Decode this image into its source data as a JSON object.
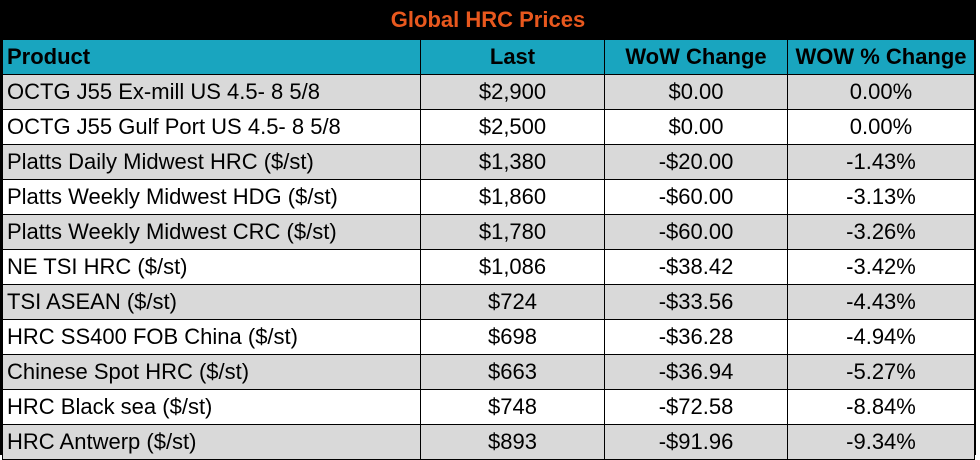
{
  "title": "Global HRC Prices",
  "colors": {
    "title_bg": "#000000",
    "title_text": "#e8581e",
    "header_bg": "#19a5bf",
    "row_shade": "#d9d9d9",
    "row_plain": "#ffffff"
  },
  "columns": [
    "Product",
    "Last",
    "WoW Change",
    "WOW % Change"
  ],
  "rows": [
    {
      "product": "OCTG J55 Ex-mill US 4.5- 8 5/8",
      "last": "$2,900",
      "wow": "$0.00",
      "wow_pct": "0.00%"
    },
    {
      "product": "OCTG J55 Gulf Port US 4.5- 8 5/8",
      "last": "$2,500",
      "wow": "$0.00",
      "wow_pct": "0.00%"
    },
    {
      "product": "Platts Daily Midwest HRC ($/st)",
      "last": "$1,380",
      "wow": "-$20.00",
      "wow_pct": "-1.43%"
    },
    {
      "product": "Platts Weekly Midwest HDG ($/st)",
      "last": "$1,860",
      "wow": "-$60.00",
      "wow_pct": "-3.13%"
    },
    {
      "product": "Platts Weekly Midwest CRC ($/st)",
      "last": "$1,780",
      "wow": "-$60.00",
      "wow_pct": "-3.26%"
    },
    {
      "product": "NE TSI HRC ($/st)",
      "last": "$1,086",
      "wow": "-$38.42",
      "wow_pct": "-3.42%"
    },
    {
      "product": "TSI ASEAN ($/st)",
      "last": "$724",
      "wow": "-$33.56",
      "wow_pct": "-4.43%"
    },
    {
      "product": "HRC SS400 FOB China ($/st)",
      "last": "$698",
      "wow": "-$36.28",
      "wow_pct": "-4.94%"
    },
    {
      "product": "Chinese Spot HRC ($/st)",
      "last": "$663",
      "wow": "-$36.94",
      "wow_pct": "-5.27%"
    },
    {
      "product": "HRC Black sea ($/st)",
      "last": "$748",
      "wow": "-$72.58",
      "wow_pct": "-8.84%"
    },
    {
      "product": "HRC Antwerp ($/st)",
      "last": "$893",
      "wow": "-$91.96",
      "wow_pct": "-9.34%"
    }
  ]
}
